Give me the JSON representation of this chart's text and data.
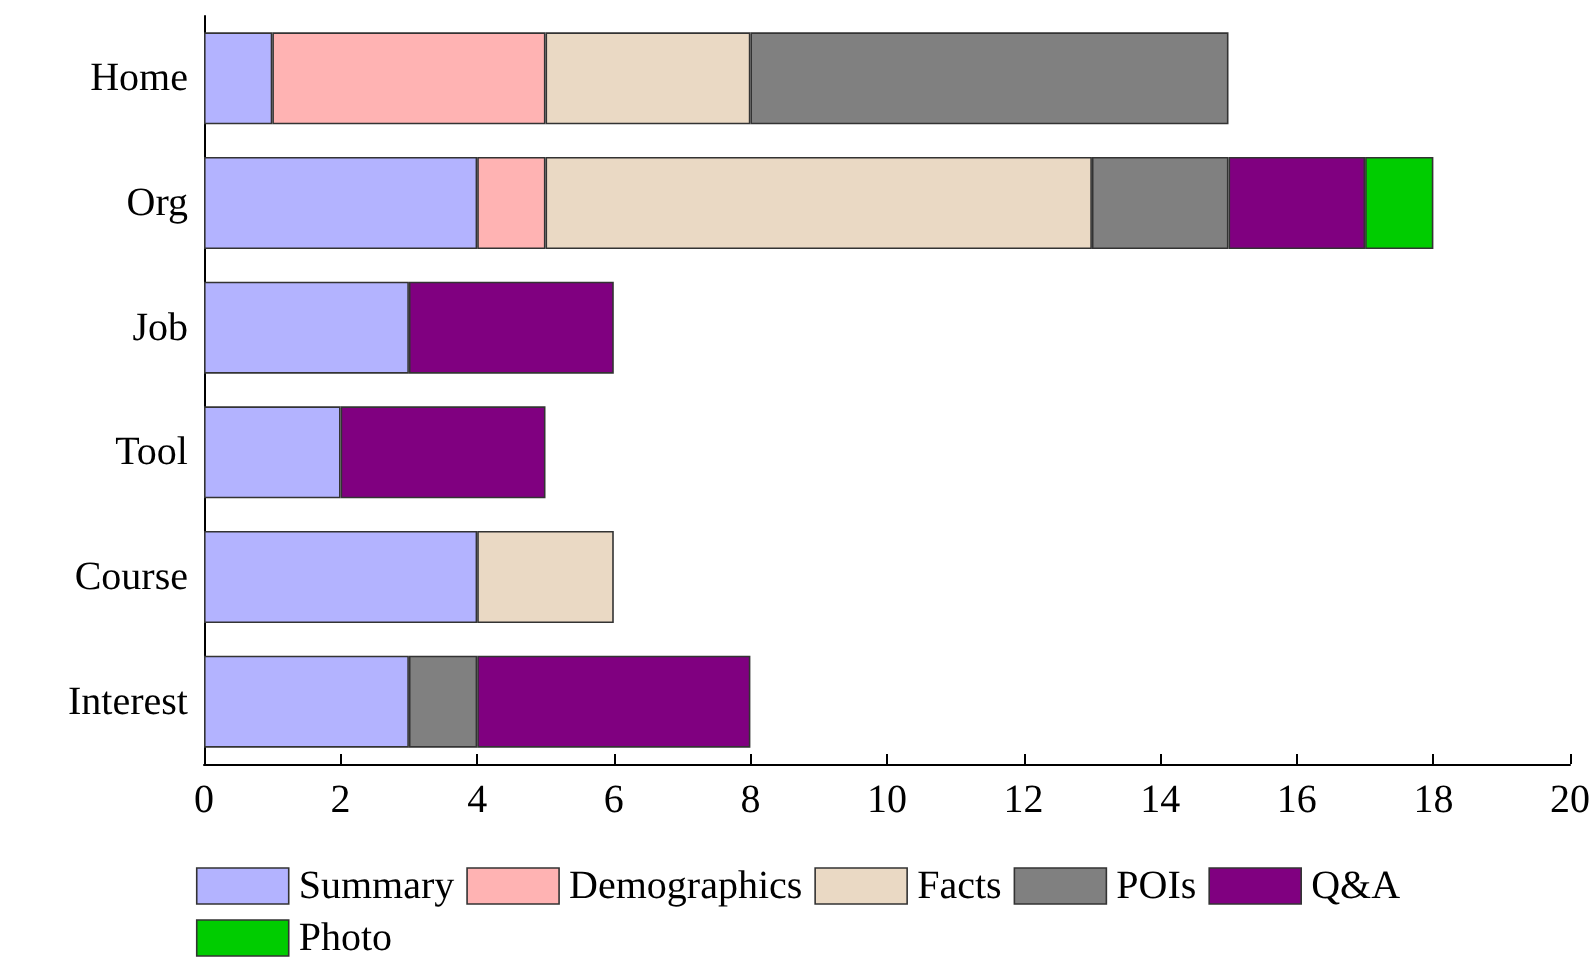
{
  "chart_data": {
    "type": "bar",
    "orientation": "horizontal",
    "stacked": true,
    "categories": [
      "Home",
      "Org",
      "Job",
      "Tool",
      "Course",
      "Interest"
    ],
    "series": [
      {
        "name": "Summary",
        "color": "#b3b3ff",
        "values": [
          1,
          4,
          3,
          2,
          4,
          3
        ]
      },
      {
        "name": "Demographics",
        "color": "#ffb3b3",
        "values": [
          4,
          1,
          null,
          null,
          null,
          null
        ]
      },
      {
        "name": "Facts",
        "color": "#ead9c4",
        "values": [
          3,
          8,
          null,
          null,
          2,
          null
        ]
      },
      {
        "name": "POIs",
        "color": "#808080",
        "values": [
          7,
          2,
          null,
          null,
          null,
          1
        ]
      },
      {
        "name": "Q&A",
        "color": "#800080",
        "values": [
          null,
          2,
          3,
          3,
          null,
          4
        ]
      },
      {
        "name": "Photo",
        "color": "#00cc00",
        "values": [
          null,
          1,
          null,
          null,
          null,
          null
        ]
      }
    ],
    "xlim": [
      0,
      20
    ],
    "xticks": [
      0,
      2,
      4,
      6,
      8,
      10,
      12,
      14,
      16,
      18,
      20
    ],
    "grid": false,
    "legend": "bottom"
  }
}
